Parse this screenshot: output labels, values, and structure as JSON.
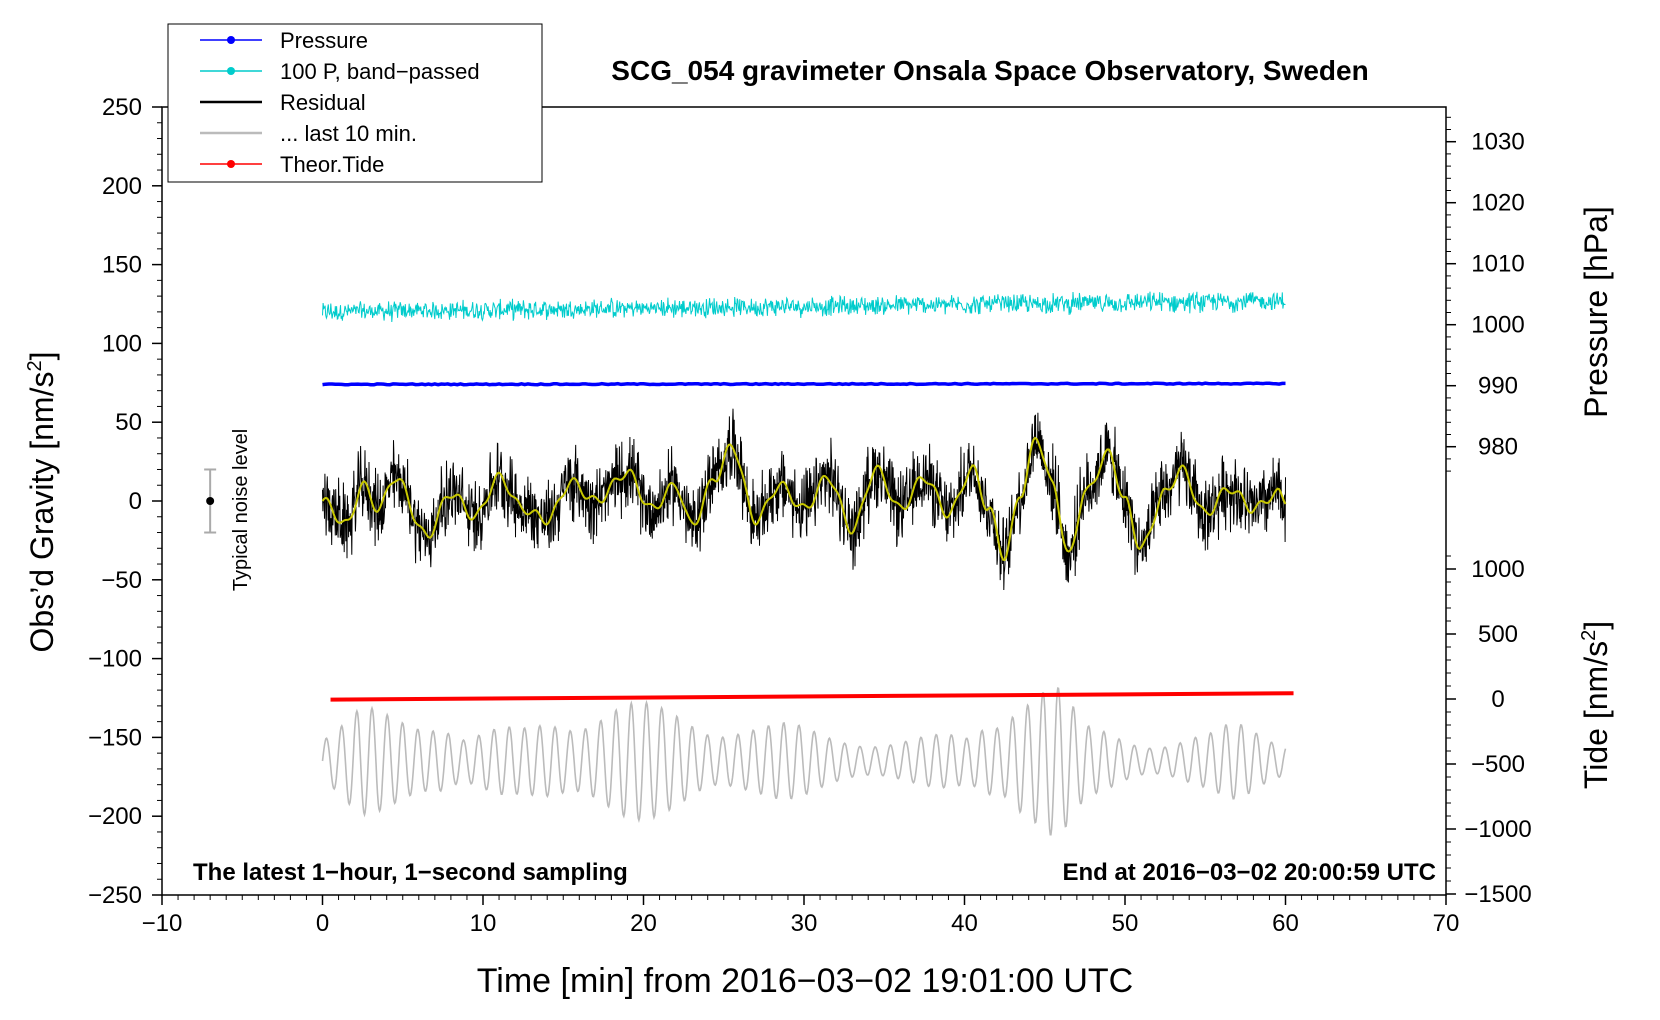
{
  "chart_data": {
    "type": "line",
    "title": "SCG_054 gravimeter Onsala Space Observatory, Sweden",
    "xlabel": "Time [min] from 2016−03−02 19:01:00 UTC",
    "ylabel_main": "Obs’d Gravity [nm/s",
    "ylabel_sup": "2",
    "ylabel_close": "]",
    "ylabel_pressure": "Pressure [hPa]",
    "ylabel_tide_main": "Tide [nm/s",
    "ylabel_tide_sup": "2",
    "ylabel_tide_close": "]",
    "xlim": [
      -10,
      70
    ],
    "ylim": [
      -250,
      250
    ],
    "x_ticks": [
      -10,
      0,
      10,
      20,
      30,
      40,
      50,
      60,
      70
    ],
    "x_tick_labels": [
      "−10",
      "0",
      "10",
      "20",
      "30",
      "40",
      "50",
      "60",
      "70"
    ],
    "y_ticks": [
      -250,
      -200,
      -150,
      -100,
      -50,
      0,
      50,
      100,
      150,
      200,
      250
    ],
    "y_tick_labels": [
      "−250",
      "−200",
      "−150",
      "−100",
      "−50",
      "0",
      "50",
      "100",
      "150",
      "200",
      "250"
    ],
    "pressure_ticks": [
      980,
      990,
      1000,
      1010,
      1020,
      1030
    ],
    "pressure_tick_labels": [
      "980",
      "990",
      "1000",
      "1010",
      "1020",
      "1030"
    ],
    "tide_ticks": [
      -1500,
      -1000,
      -500,
      0,
      500,
      1000
    ],
    "tide_tick_labels": [
      "−1500",
      "−1000",
      "−500",
      "0",
      "500",
      "1000"
    ],
    "legend": [
      {
        "label": "Pressure",
        "color": "#0000ff",
        "marker": true
      },
      {
        "label": "100 P, band−passed",
        "color": "#00cccc",
        "marker": true
      },
      {
        "label": "Residual",
        "color": "#000000",
        "marker": false
      },
      {
        "label": "... last 10 min.",
        "color": "#bbbbbb",
        "marker": false
      },
      {
        "label": "Theor.Tide",
        "color": "#ff0000",
        "marker": true
      }
    ],
    "annotations": {
      "bottom_left": "The latest 1−hour, 1−second sampling",
      "bottom_right": "End at 2016−03−02 20:00:59 UTC",
      "noise_label": "Typical noise level"
    },
    "noise_bar": {
      "x": -7,
      "center": 0,
      "half_range": 20
    },
    "series": [
      {
        "name": "Pressure",
        "color": "#0000ff",
        "x_range": [
          0,
          60
        ],
        "y_main": 74,
        "y_end": 74.5
      },
      {
        "name": "100 P, band-passed",
        "color": "#00cccc",
        "x_range": [
          0,
          60
        ],
        "y_start": 120,
        "y_end": 127,
        "amplitude": 5
      },
      {
        "name": "Residual",
        "color": "#000000",
        "x_range": [
          0,
          60
        ],
        "amplitude": 22,
        "smooth_keypoints_x": [
          0,
          1.5,
          2.5,
          3.5,
          4.5,
          6.5,
          8,
          9.5,
          11,
          12.5,
          14,
          15.5,
          17,
          19,
          20.5,
          22,
          23,
          24.5,
          25.5,
          27,
          28.5,
          30,
          31.5,
          33,
          34.5,
          36,
          37.5,
          39,
          40.5,
          41.5,
          42.5,
          43.5,
          44.5,
          45.5,
          46.5,
          47.5,
          49,
          50,
          51,
          52.5,
          53.5,
          55,
          56.5,
          58,
          59.5,
          60
        ],
        "smooth_keypoints_y": [
          0,
          -15,
          10,
          -5,
          15,
          -22,
          5,
          -10,
          15,
          -5,
          -12,
          12,
          0,
          18,
          -5,
          10,
          -15,
          15,
          35,
          -12,
          10,
          -5,
          15,
          -18,
          20,
          -5,
          15,
          -8,
          20,
          -5,
          -35,
          5,
          40,
          10,
          -35,
          5,
          30,
          0,
          -30,
          5,
          20,
          -8,
          8,
          -5,
          5,
          0
        ]
      },
      {
        "name": "... last 10 min.",
        "color": "#bbbbbb",
        "x_range": [
          0,
          60
        ],
        "center": -165,
        "envelope_x": [
          0,
          3,
          7,
          9,
          12,
          15,
          18,
          22,
          25,
          28,
          32,
          36,
          40,
          42,
          43.5,
          45,
          48,
          52,
          55,
          57,
          60
        ],
        "envelope_y": [
          18,
          35,
          38,
          18,
          22,
          38,
          40,
          35,
          30,
          25,
          20,
          15,
          18,
          40,
          60,
          58,
          22,
          16,
          18,
          25,
          18
        ]
      },
      {
        "name": "Theor.Tide",
        "color": "#ff0000",
        "x_range": [
          0.5,
          60.5
        ],
        "y_start": -126,
        "y_end": -122
      }
    ]
  }
}
